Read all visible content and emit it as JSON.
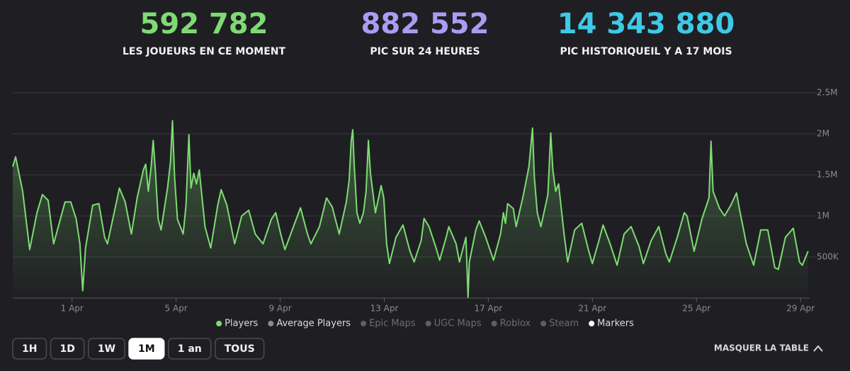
{
  "stats": [
    {
      "value": "592 782",
      "label": "LES JOUEURS EN CE MOMENT",
      "color": "#7edb73"
    },
    {
      "value": "882 552",
      "label": "PIC SUR 24 HEURES",
      "color": "#a99cf2"
    },
    {
      "value": "14 343 880",
      "label": "PIC HISTORIQUEIL Y A 17 MOIS",
      "color": "#3ec9e6"
    }
  ],
  "chart_data": {
    "type": "line",
    "x": [
      -1.28,
      -1.17,
      -0.9,
      -0.63,
      -0.35,
      -0.14,
      0.08,
      0.29,
      0.73,
      0.95,
      1.16,
      1.3,
      1.41,
      1.52,
      1.79,
      2.03,
      2.25,
      2.36,
      2.68,
      2.82,
      3.04,
      3.28,
      3.5,
      3.74,
      3.83,
      3.93,
      4.04,
      4.12,
      4.2,
      4.31,
      4.42,
      4.67,
      4.78,
      4.86,
      4.94,
      5.05,
      5.27,
      5.38,
      5.49,
      5.57,
      5.68,
      5.78,
      5.89,
      6.11,
      6.33,
      6.6,
      6.73,
      6.95,
      7.25,
      7.52,
      7.79,
      8.04,
      8.34,
      8.66,
      8.83,
      9.02,
      9.18,
      9.51,
      9.78,
      10.05,
      10.18,
      10.51,
      10.78,
      11.0,
      11.27,
      11.54,
      11.65,
      11.73,
      11.79,
      11.84,
      11.95,
      12.06,
      12.2,
      12.3,
      12.39,
      12.47,
      12.66,
      12.88,
      12.98,
      13.09,
      13.2,
      13.45,
      13.72,
      13.99,
      14.15,
      14.42,
      14.53,
      14.72,
      14.99,
      15.13,
      15.38,
      15.48,
      15.76,
      15.89,
      16.14,
      16.22,
      16.27,
      16.52,
      16.65,
      16.9,
      17.2,
      17.47,
      17.58,
      17.66,
      17.74,
      17.96,
      18.07,
      18.35,
      18.56,
      18.7,
      18.77,
      18.88,
      19.02,
      19.29,
      19.4,
      19.48,
      19.59,
      19.7,
      19.91,
      20.05,
      20.32,
      20.59,
      20.86,
      21.0,
      21.27,
      21.41,
      21.68,
      21.95,
      22.22,
      22.49,
      22.79,
      22.96,
      23.26,
      23.55,
      23.83,
      23.96,
      24.26,
      24.53,
      24.64,
      24.91,
      25.21,
      25.48,
      25.56,
      25.64,
      25.89,
      26.08,
      26.32,
      26.54,
      26.65,
      26.92,
      27.2,
      27.47,
      27.74,
      28.01,
      28.15,
      28.42,
      28.72,
      28.96,
      29.07,
      29.29
    ],
    "series": [
      {
        "name": "Players",
        "color": "#7edb73",
        "active": true,
        "values": [
          1600000,
          1720000,
          1300000,
          590000,
          1040000,
          1260000,
          1190000,
          660000,
          1170000,
          1170000,
          960000,
          660000,
          90000,
          610000,
          1130000,
          1150000,
          740000,
          660000,
          1130000,
          1340000,
          1170000,
          780000,
          1220000,
          1560000,
          1630000,
          1300000,
          1600000,
          1920000,
          1560000,
          960000,
          830000,
          1340000,
          1650000,
          2160000,
          1470000,
          960000,
          780000,
          1130000,
          1990000,
          1340000,
          1520000,
          1390000,
          1560000,
          870000,
          610000,
          1130000,
          1320000,
          1130000,
          660000,
          1000000,
          1070000,
          780000,
          660000,
          960000,
          1040000,
          780000,
          590000,
          870000,
          1100000,
          780000,
          660000,
          870000,
          1220000,
          1110000,
          780000,
          1170000,
          1430000,
          1910000,
          2050000,
          1650000,
          1040000,
          910000,
          1040000,
          1300000,
          1920000,
          1520000,
          1040000,
          1370000,
          1220000,
          660000,
          420000,
          740000,
          890000,
          570000,
          440000,
          700000,
          970000,
          870000,
          610000,
          460000,
          740000,
          870000,
          660000,
          440000,
          740000,
          10000,
          440000,
          830000,
          940000,
          740000,
          460000,
          780000,
          1040000,
          910000,
          1150000,
          1090000,
          870000,
          1260000,
          1600000,
          2070000,
          1470000,
          1040000,
          870000,
          1260000,
          2010000,
          1560000,
          1300000,
          1390000,
          780000,
          440000,
          830000,
          910000,
          570000,
          420000,
          720000,
          890000,
          660000,
          400000,
          780000,
          870000,
          630000,
          420000,
          700000,
          870000,
          530000,
          440000,
          740000,
          1040000,
          1000000,
          570000,
          960000,
          1220000,
          1910000,
          1300000,
          1090000,
          1000000,
          1130000,
          1280000,
          1090000,
          660000,
          400000,
          830000,
          830000,
          370000,
          350000,
          740000,
          850000,
          440000,
          400000,
          570000
        ]
      },
      {
        "name": "Average Players",
        "color": "#8a8a8a",
        "active": true
      },
      {
        "name": "Epic Maps",
        "color": "#5e5e64",
        "active": false
      },
      {
        "name": "UGC Maps",
        "color": "#5e5e64",
        "active": false
      },
      {
        "name": "Roblox",
        "color": "#5e5e64",
        "active": false
      },
      {
        "name": "Steam",
        "color": "#5e5e64",
        "active": false
      },
      {
        "name": "Markers",
        "color": "#ffffff",
        "active": true
      }
    ],
    "xlim": [
      -1.28,
      29.35
    ],
    "xticks": [
      {
        "value": 1,
        "label": "1 Apr"
      },
      {
        "value": 5,
        "label": "5 Apr"
      },
      {
        "value": 9,
        "label": "9 Apr"
      },
      {
        "value": 13,
        "label": "13 Apr"
      },
      {
        "value": 17,
        "label": "17 Apr"
      },
      {
        "value": 21,
        "label": "21 Apr"
      },
      {
        "value": 25,
        "label": "25 Apr"
      },
      {
        "value": 29,
        "label": "29 Apr"
      }
    ],
    "ylim": [
      0,
      2500000
    ],
    "yticks": [
      {
        "value": 500000,
        "label": "500K"
      },
      {
        "value": 1000000,
        "label": "1M"
      },
      {
        "value": 1500000,
        "label": "1.5M"
      },
      {
        "value": 2000000,
        "label": "2M"
      },
      {
        "value": 2500000,
        "label": "2.5M"
      }
    ],
    "grid": true
  },
  "buttons": [
    "1H",
    "1D",
    "1W",
    "1M",
    "1 an",
    "TOUS"
  ],
  "selected_button": 3,
  "toggle": "MASQUER LA TABLE"
}
